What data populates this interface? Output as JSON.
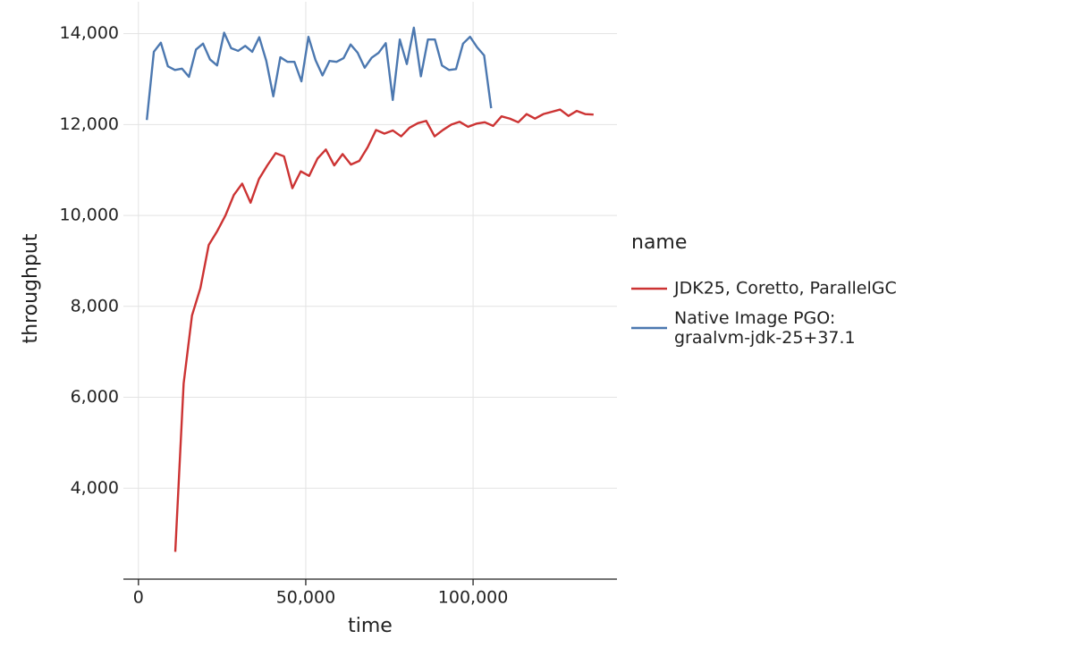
{
  "chart_data": {
    "type": "line",
    "xlabel": "time",
    "ylabel": "throughput",
    "legend_title": "name",
    "legend": "right",
    "grid": true,
    "xlim": [
      -4500,
      143000
    ],
    "ylim": [
      2000,
      14700
    ],
    "xticks": [
      0,
      {
        "value": 50000,
        "label": "50,000"
      },
      {
        "value": 100000,
        "label": "100,000"
      }
    ],
    "yticks": [
      {
        "value": 4000,
        "label": "4,000"
      },
      {
        "value": 6000,
        "label": "6,000"
      },
      {
        "value": 8000,
        "label": "8,000"
      },
      {
        "value": 10000,
        "label": "10,000"
      },
      {
        "value": 12000,
        "label": "12,000"
      },
      {
        "value": 14000,
        "label": "14,000"
      }
    ],
    "series": [
      {
        "name": "JDK25, Coretto, ParallelGC",
        "color": "#cc3333",
        "x": [
          11000,
          13500,
          16000,
          18500,
          21000,
          23500,
          26000,
          28500,
          31000,
          33500,
          36000,
          38500,
          41000,
          43500,
          46000,
          48500,
          51000,
          53500,
          56000,
          58500,
          61000,
          63500,
          66000,
          68500,
          71000,
          73500,
          76000,
          78500,
          81000,
          83500,
          86000,
          88500,
          91000,
          93500,
          96000,
          98500,
          101000,
          103500,
          106000,
          108500,
          111000,
          113500,
          116000,
          118500,
          121000,
          123500,
          126000,
          128500,
          131000,
          133500,
          136000
        ],
        "values": [
          2600,
          6300,
          7800,
          8400,
          9350,
          9650,
          10000,
          10450,
          10700,
          10280,
          10800,
          11100,
          11370,
          11300,
          10600,
          10970,
          10870,
          11250,
          11450,
          11100,
          11350,
          11120,
          11200,
          11500,
          11880,
          11800,
          11870,
          11740,
          11930,
          12030,
          12080,
          11740,
          11880,
          12000,
          12060,
          11950,
          12020,
          12050,
          11970,
          12180,
          12130,
          12050,
          12230,
          12130,
          12230,
          12280,
          12330,
          12190,
          12300,
          12230,
          12220
        ]
      },
      {
        "name": "Native Image PGO:\ngraalvm-jdk-25+37.1",
        "color": "#4c78b0",
        "x": [
          2500,
          4600,
          6700,
          8800,
          10900,
          13000,
          15100,
          17200,
          19300,
          21400,
          23500,
          25600,
          27700,
          29800,
          31900,
          34000,
          36100,
          38200,
          40300,
          42400,
          44500,
          46600,
          48700,
          50800,
          52900,
          55000,
          57100,
          59200,
          61300,
          63400,
          65500,
          67600,
          69700,
          71800,
          73900,
          76000,
          78100,
          80200,
          82300,
          84400,
          86500,
          88600,
          90700,
          92800,
          94900,
          97000,
          99100,
          101200,
          103300,
          105400
        ],
        "values": [
          12100,
          13600,
          13800,
          13280,
          13200,
          13230,
          13050,
          13650,
          13780,
          13430,
          13300,
          14020,
          13680,
          13620,
          13730,
          13600,
          13920,
          13400,
          12620,
          13480,
          13380,
          13380,
          12950,
          13930,
          13420,
          13080,
          13400,
          13380,
          13460,
          13760,
          13580,
          13250,
          13470,
          13580,
          13790,
          12540,
          13870,
          13330,
          14130,
          13060,
          13870,
          13870,
          13300,
          13200,
          13220,
          13780,
          13930,
          13700,
          13520,
          12360
        ]
      }
    ]
  }
}
